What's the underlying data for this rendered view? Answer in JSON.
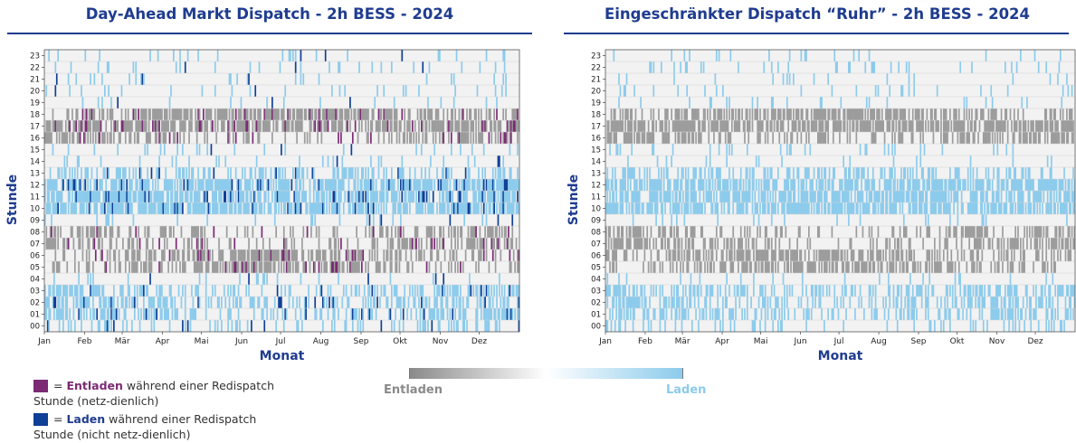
{
  "panels": [
    {
      "title": "Day-Ahead Markt Dispatch - 2h BESS - 2024"
    },
    {
      "title": "Eingeschränkter Dispatch “Ruhr” - 2h BESS - 2024"
    }
  ],
  "legend": {
    "entladen": {
      "prefix": "= ",
      "strong": "Entladen",
      "rest": " während einer Redispatch",
      "line2": "Stunde (netz-dienlich)",
      "color": "#7b2a73"
    },
    "laden": {
      "prefix": "= ",
      "strong": "Laden",
      "rest": " während einer Redispatch",
      "line2": "Stunde (nicht netz-dienlich)",
      "color": "#0f3f96"
    }
  },
  "gradient": {
    "left_label": "Entladen",
    "right_label": "Laden",
    "left_color": "#8a8a8a",
    "right_color": "#8ccbec"
  },
  "chart_data": [
    {
      "type": "heatmap",
      "title": "Day-Ahead Markt Dispatch - 2h BESS - 2024",
      "xlabel": "Monat",
      "ylabel": "Stunde",
      "x_ticks": [
        "Jan",
        "Feb",
        "Mär",
        "Apr",
        "Mai",
        "Jun",
        "Jul",
        "Aug",
        "Sep",
        "Okt",
        "Nov",
        "Dez"
      ],
      "y_ticks": [
        "00",
        "01",
        "02",
        "03",
        "04",
        "05",
        "06",
        "07",
        "08",
        "09",
        "10",
        "11",
        "12",
        "13",
        "14",
        "15",
        "16",
        "17",
        "18",
        "19",
        "20",
        "21",
        "22",
        "23"
      ],
      "x_range": [
        "2024-01-01",
        "2024-12-31"
      ],
      "grid": true,
      "colors": {
        "background": "#f2f2f2",
        "discharge": "#9c9c9c",
        "charge": "#8ccbec",
        "redispatch_discharge": "#7b2a73",
        "redispatch_charge": "#0f3f96"
      },
      "hour_profile": {
        "discharge_main": [
          16,
          17,
          18
        ],
        "discharge_secondary": [
          5,
          6,
          7,
          8
        ],
        "charge_main": [
          10,
          11,
          12,
          13
        ],
        "charge_secondary": [
          0,
          1,
          2,
          3
        ]
      },
      "redispatch_hours": true
    },
    {
      "type": "heatmap",
      "title": "Eingeschränkter Dispatch “Ruhr” - 2h BESS - 2024",
      "xlabel": "Monat",
      "ylabel": "Stunde",
      "x_ticks": [
        "Jan",
        "Feb",
        "Mär",
        "Apr",
        "Mai",
        "Jun",
        "Jul",
        "Aug",
        "Sep",
        "Okt",
        "Nov",
        "Dez"
      ],
      "y_ticks": [
        "00",
        "01",
        "02",
        "03",
        "04",
        "05",
        "06",
        "07",
        "08",
        "09",
        "10",
        "11",
        "12",
        "13",
        "14",
        "15",
        "16",
        "17",
        "18",
        "19",
        "20",
        "21",
        "22",
        "23"
      ],
      "x_range": [
        "2024-01-01",
        "2024-12-31"
      ],
      "grid": true,
      "colors": {
        "background": "#f2f2f2",
        "discharge": "#9c9c9c",
        "charge": "#8ccbec"
      },
      "hour_profile": {
        "discharge_main": [
          16,
          17,
          18
        ],
        "discharge_secondary": [
          5,
          6,
          7,
          8
        ],
        "charge_main": [
          10,
          11,
          12,
          13
        ],
        "charge_secondary": [
          0,
          1,
          2,
          3
        ]
      },
      "redispatch_hours": false
    }
  ]
}
